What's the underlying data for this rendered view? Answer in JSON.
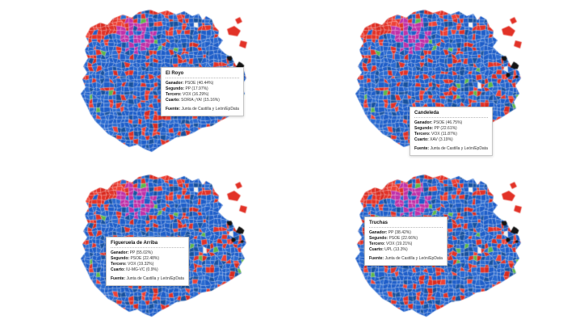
{
  "canvas": {
    "background": "#ffffff"
  },
  "palette": {
    "blue": "#1e5ec9",
    "blue2": "#2a6ad0",
    "blue3": "#17519f",
    "red": "#e23227",
    "red2": "#d92b20",
    "red3": "#ef4135",
    "magenta": "#c031a8",
    "green": "#5db84b",
    "white_cell": "#f0f0f0",
    "black": "#141414",
    "cell_stroke": "rgba(255,255,255,0.55)"
  },
  "maps": [
    {
      "id": "el-royo",
      "tooltip": {
        "title": "El Royo",
        "rows": [
          {
            "label": "Ganador:",
            "value": "PSOE (40.44%)"
          },
          {
            "label": "Segundo:",
            "value": "PP (17.97%)"
          },
          {
            "label": "Tercero:",
            "value": "VOX (16.29%)"
          },
          {
            "label": "Cuarto:",
            "value": "SORIA ¡YA! (15.16%)"
          }
        ],
        "source_label": "Fuente:",
        "source": "Junta de Castilla y León/EpData"
      }
    },
    {
      "id": "candeleda",
      "tooltip": {
        "title": "Candeleda",
        "rows": [
          {
            "label": "Ganador:",
            "value": "PSOE (46.75%)"
          },
          {
            "label": "Segundo:",
            "value": "PP (22.61%)"
          },
          {
            "label": "Tercero:",
            "value": "VOX (11.87%)"
          },
          {
            "label": "Cuarto:",
            "value": "XAV (3.19%)"
          }
        ],
        "source_label": "Fuente:",
        "source": "Junta de Castilla y León/EpData"
      }
    },
    {
      "id": "figueruela-de-arriba",
      "tooltip": {
        "title": "Figueruela de Arriba",
        "rows": [
          {
            "label": "Ganador:",
            "value": "PP (55.02%)"
          },
          {
            "label": "Segundo:",
            "value": "PSOE (22.48%)"
          },
          {
            "label": "Tercero:",
            "value": "VOX (19.32%)"
          },
          {
            "label": "Cuarto:",
            "value": "IU-MG-VC (0.9%)"
          }
        ],
        "source_label": "Fuente:",
        "source": "Junta de Castilla y León/EpData"
      }
    },
    {
      "id": "truchas",
      "tooltip": {
        "title": "Truchas",
        "rows": [
          {
            "label": "Ganador:",
            "value": "PP (38.42%)"
          },
          {
            "label": "Segundo:",
            "value": "PSOE (22.66%)"
          },
          {
            "label": "Tercero:",
            "value": "VOX (19.21%)"
          },
          {
            "label": "Cuarto:",
            "value": "UPL (13.3%)"
          }
        ],
        "source_label": "Fuente:",
        "source": "Junta de Castilla y León/EpData"
      }
    }
  ]
}
